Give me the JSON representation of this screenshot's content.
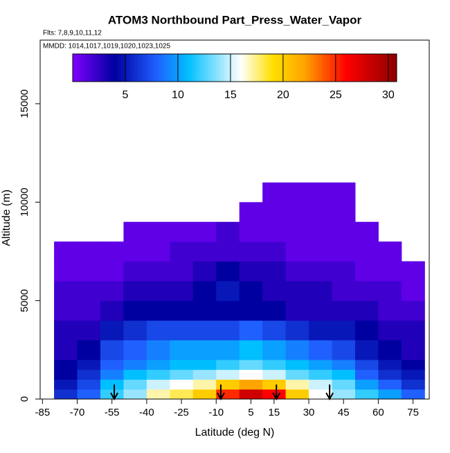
{
  "chart_data": {
    "type": "heatmap",
    "title": "ATOM3 Northbound Part_Press_Water_Vapor",
    "subtitle": "Flts: 7,8,9,10,11,12",
    "annotation": "MMDD: 1014,1017,1019,1020,1023,1025",
    "x_label": "Latitude (deg N)",
    "y_label": "Altitude (m)",
    "x_edges": [
      -80,
      -70,
      -60,
      -50,
      -40,
      -30,
      -20,
      -10,
      0,
      10,
      20,
      30,
      40,
      50,
      60,
      70,
      80
    ],
    "y_edges": [
      0,
      500,
      1000,
      1500,
      2000,
      3000,
      4000,
      5000,
      6000,
      7000,
      8000,
      9000,
      10000,
      11000
    ],
    "values": [
      [
        6,
        8,
        12,
        14,
        17,
        18,
        20,
        25,
        28,
        26,
        20,
        16,
        14,
        12,
        10,
        8
      ],
      [
        5,
        7,
        11,
        13,
        15,
        16,
        17,
        20,
        22,
        20,
        17,
        15,
        13,
        10,
        8,
        6
      ],
      [
        4,
        6,
        9,
        11,
        12,
        13,
        14,
        15,
        16,
        15,
        13,
        12,
        11,
        8,
        6,
        5
      ],
      [
        4,
        5,
        8,
        9,
        10,
        11,
        11,
        12,
        13,
        12,
        11,
        10,
        9,
        7,
        5,
        4
      ],
      [
        3,
        4,
        7,
        8,
        9,
        10,
        10,
        10,
        11,
        10,
        9,
        8,
        7,
        5,
        4,
        3
      ],
      [
        3,
        3,
        5,
        6,
        7,
        7,
        7,
        7,
        8,
        7,
        6,
        5,
        5,
        4,
        3,
        3
      ],
      [
        2,
        2,
        3,
        4,
        4,
        4,
        4,
        4,
        4,
        4,
        3,
        3,
        3,
        3,
        2,
        2
      ],
      [
        2,
        2,
        2,
        3,
        3,
        3,
        4,
        5,
        4,
        3,
        3,
        3,
        2,
        2,
        2,
        1
      ],
      [
        1,
        1,
        1,
        2,
        2,
        2,
        3,
        4,
        3,
        3,
        2,
        2,
        2,
        1,
        1,
        1
      ],
      [
        1,
        1,
        1,
        1,
        1,
        2,
        2,
        2,
        2,
        2,
        1,
        1,
        1,
        1,
        1,
        null
      ],
      [
        null,
        null,
        null,
        1,
        1,
        1,
        1,
        2,
        1,
        1,
        1,
        1,
        1,
        1,
        null,
        null
      ],
      [
        null,
        null,
        null,
        null,
        null,
        null,
        null,
        null,
        1,
        1,
        1,
        1,
        1,
        null,
        null,
        null
      ],
      [
        null,
        null,
        null,
        null,
        null,
        null,
        null,
        null,
        null,
        1,
        1,
        1,
        1,
        null,
        null,
        null
      ]
    ],
    "arrows": [
      -54,
      -8,
      16,
      39
    ],
    "colorscale": [
      [
        0,
        "#7f00ff"
      ],
      [
        4,
        "#0000a0"
      ],
      [
        8,
        "#2060ff"
      ],
      [
        11,
        "#00bfff"
      ],
      [
        16,
        "#ffffff"
      ],
      [
        19,
        "#ffe000"
      ],
      [
        22,
        "#ffa500"
      ],
      [
        26,
        "#ff0000"
      ],
      [
        30.8,
        "#8b0000"
      ]
    ],
    "clim": [
      0,
      30.8
    ],
    "cticks": [
      5,
      10,
      15,
      20,
      25,
      30
    ],
    "xlim": [
      -86,
      82
    ],
    "ylim": [
      0,
      18230
    ],
    "xticks": [
      -85,
      -70,
      -55,
      -40,
      -25,
      -10,
      5,
      15,
      30,
      45,
      60,
      75
    ],
    "yticks": [
      0,
      5000,
      10000,
      15000
    ]
  }
}
